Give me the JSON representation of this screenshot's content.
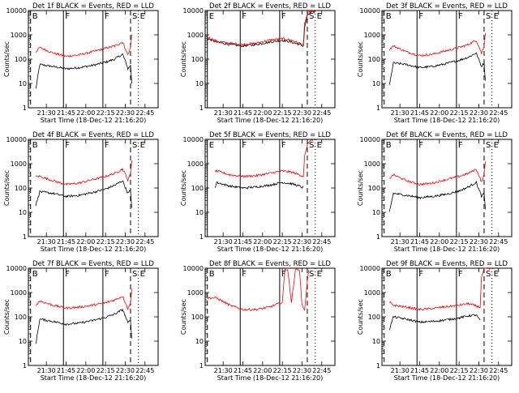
{
  "figure": {
    "xlabel": "Start Time (18-Dec-12 21:16:20)",
    "ylabel": "Counts/sec",
    "x_tick_labels": [
      "21:30",
      "21:45",
      "22:00",
      "22:15",
      "22:30",
      "22:45"
    ],
    "y_tick_labels": [
      "1",
      "10",
      "100",
      "1000",
      "10000"
    ],
    "series_colors": {
      "events": "#000000",
      "lld": "#ff0000"
    }
  },
  "chart_data": [
    {
      "type": "line",
      "title": "Det 1f BLACK = Events, RED = LLD",
      "xlabel": "Start Time (18-Dec-12 21:16:20)",
      "ylabel": "Counts/sec",
      "y_scale": "log",
      "ylim": [
        1,
        10000
      ],
      "xlim": [
        "21:16:20",
        "22:55"
      ],
      "x": [
        "21:22",
        "21:25",
        "21:35",
        "21:45",
        "21:55",
        "22:05",
        "22:15",
        "22:22",
        "22:28",
        "22:31",
        "22:32",
        "22:34",
        "22:35"
      ],
      "series": [
        {
          "name": "Events",
          "color": "#000000",
          "values": [
            6,
            60,
            50,
            40,
            45,
            55,
            75,
            100,
            160,
            60,
            40,
            55,
            10
          ]
        },
        {
          "name": "LLD",
          "color": "#ff0000",
          "values": [
            200,
            300,
            180,
            130,
            150,
            200,
            280,
            350,
            500,
            200,
            150,
            300,
            1000
          ]
        }
      ],
      "markers": [
        {
          "time": "21:18",
          "label": "B",
          "style": "dashed"
        },
        {
          "time": "21:43",
          "label": "F",
          "style": "solid"
        },
        {
          "time": "22:13",
          "label": "F",
          "style": "solid"
        },
        {
          "time": "22:34",
          "label": "S",
          "style": "dashed"
        },
        {
          "time": "22:40",
          "label": "E",
          "style": "dotted"
        }
      ]
    },
    {
      "type": "line",
      "title": "Det 2f BLACK = Events, RED = LLD",
      "xlabel": "Start Time (18-Dec-12 21:16:20)",
      "ylabel": "Counts/sec",
      "y_scale": "log",
      "ylim": [
        1,
        10000
      ],
      "xlim": [
        "21:16:20",
        "22:55"
      ],
      "x": [
        "21:18",
        "21:25",
        "21:35",
        "21:45",
        "21:55",
        "22:05",
        "22:15",
        "22:22",
        "22:28",
        "22:31",
        "22:32",
        "22:34",
        "22:36",
        "22:40"
      ],
      "series": [
        {
          "name": "Events",
          "color": "#000000",
          "values": [
            700,
            500,
            400,
            350,
            400,
            500,
            600,
            500,
            400,
            350,
            2000,
            6000,
            8000,
            9000
          ]
        },
        {
          "name": "LLD",
          "color": "#ff0000",
          "values": [
            800,
            550,
            450,
            400,
            450,
            600,
            700,
            600,
            450,
            400,
            3000,
            7000,
            9000,
            9500
          ]
        }
      ],
      "markers": [
        {
          "time": "21:18",
          "label": "E",
          "style": "solid"
        },
        {
          "time": "21:43",
          "label": "F",
          "style": "solid"
        },
        {
          "time": "22:13",
          "label": "F",
          "style": "solid"
        },
        {
          "time": "22:34",
          "label": "S",
          "style": "dashed"
        },
        {
          "time": "22:40",
          "label": "E",
          "style": "dotted"
        }
      ]
    },
    {
      "type": "line",
      "title": "Det 3f BLACK = Events, RED = LLD",
      "xlabel": "Start Time (18-Dec-12 21:16:20)",
      "ylabel": "Counts/sec",
      "y_scale": "log",
      "ylim": [
        1,
        10000
      ],
      "xlim": [
        "21:16:20",
        "22:55"
      ],
      "x": [
        "21:22",
        "21:25",
        "21:35",
        "21:45",
        "21:55",
        "22:05",
        "22:15",
        "22:22",
        "22:28",
        "22:31",
        "22:32",
        "22:34",
        "22:35"
      ],
      "series": [
        {
          "name": "Events",
          "color": "#000000",
          "values": [
            8,
            70,
            60,
            45,
            50,
            65,
            90,
            120,
            180,
            70,
            50,
            70,
            12
          ]
        },
        {
          "name": "LLD",
          "color": "#ff0000",
          "values": [
            250,
            350,
            200,
            140,
            160,
            220,
            300,
            400,
            600,
            250,
            170,
            350,
            1200
          ]
        }
      ],
      "markers": [
        {
          "time": "21:18",
          "label": "B",
          "style": "dashed"
        },
        {
          "time": "21:43",
          "label": "F",
          "style": "solid"
        },
        {
          "time": "22:13",
          "label": "F",
          "style": "solid"
        },
        {
          "time": "22:34",
          "label": "S",
          "style": "dashed"
        },
        {
          "time": "22:40",
          "label": "E",
          "style": "dotted"
        }
      ]
    },
    {
      "type": "line",
      "title": "Det 4f BLACK = Events, RED = LLD",
      "xlabel": "Start Time (18-Dec-12 21:16:20)",
      "ylabel": "Counts/sec",
      "y_scale": "log",
      "ylim": [
        1,
        10000
      ],
      "xlim": [
        "21:16:20",
        "22:55"
      ],
      "x": [
        "21:22",
        "21:25",
        "21:35",
        "21:45",
        "21:55",
        "22:05",
        "22:15",
        "22:22",
        "22:28",
        "22:31",
        "22:32",
        "22:34",
        "22:35"
      ],
      "series": [
        {
          "name": "Events",
          "color": "#000000",
          "values": [
            20,
            70,
            60,
            45,
            50,
            65,
            90,
            130,
            200,
            80,
            60,
            80,
            15
          ]
        },
        {
          "name": "LLD",
          "color": "#ff0000",
          "values": [
            300,
            300,
            200,
            140,
            160,
            220,
            300,
            400,
            600,
            300,
            200,
            400,
            1500
          ]
        }
      ],
      "markers": [
        {
          "time": "21:18",
          "label": "B",
          "style": "dashed"
        },
        {
          "time": "21:43",
          "label": "F",
          "style": "solid"
        },
        {
          "time": "22:13",
          "label": "F",
          "style": "solid"
        },
        {
          "time": "22:34",
          "label": "S",
          "style": "dashed"
        },
        {
          "time": "22:40",
          "label": "E",
          "style": "dotted"
        }
      ]
    },
    {
      "type": "line",
      "title": "Det 5f BLACK = Events, RED = LLD",
      "xlabel": "Start Time (18-Dec-12 21:16:20)",
      "ylabel": "Counts/sec",
      "y_scale": "log",
      "ylim": [
        1,
        10000
      ],
      "xlim": [
        "21:16:20",
        "22:55"
      ],
      "x": [
        "21:24",
        "21:25",
        "21:35",
        "21:45",
        "21:55",
        "22:05",
        "22:15",
        "22:22",
        "22:28",
        "22:31",
        "22:32",
        "22:34",
        "22:36",
        "22:40"
      ],
      "series": [
        {
          "name": "Events",
          "color": "#000000",
          "values": [
            100,
            170,
            120,
            100,
            110,
            130,
            170,
            150,
            120,
            100,
            null,
            null,
            null,
            null
          ]
        },
        {
          "name": "LLD",
          "color": "#ff0000",
          "values": [
            500,
            500,
            350,
            300,
            320,
            400,
            500,
            450,
            350,
            300,
            2000,
            6000,
            9000,
            9500
          ]
        }
      ],
      "markers": [
        {
          "time": "21:18",
          "label": "E",
          "style": "solid"
        },
        {
          "time": "21:43",
          "label": "F",
          "style": "solid"
        },
        {
          "time": "22:13",
          "label": "F",
          "style": "solid"
        },
        {
          "time": "22:34",
          "label": "S",
          "style": "dashed"
        },
        {
          "time": "22:40",
          "label": "E",
          "style": "dotted"
        }
      ]
    },
    {
      "type": "line",
      "title": "Det 6f BLACK = Events, RED = LLD",
      "xlabel": "Start Time (18-Dec-12 21:16:20)",
      "ylabel": "Counts/sec",
      "y_scale": "log",
      "ylim": [
        1,
        10000
      ],
      "xlim": [
        "21:16:20",
        "22:55"
      ],
      "x": [
        "21:22",
        "21:25",
        "21:35",
        "21:45",
        "21:55",
        "22:05",
        "22:15",
        "22:22",
        "22:28",
        "22:31",
        "22:32",
        "22:34",
        "22:35"
      ],
      "series": [
        {
          "name": "Events",
          "color": "#000000",
          "values": [
            10,
            60,
            50,
            40,
            45,
            55,
            75,
            110,
            170,
            65,
            45,
            60,
            12
          ]
        },
        {
          "name": "LLD",
          "color": "#ff0000",
          "values": [
            250,
            350,
            200,
            140,
            160,
            220,
            300,
            400,
            600,
            250,
            170,
            350,
            1200
          ]
        }
      ],
      "markers": [
        {
          "time": "21:18",
          "label": "B",
          "style": "dashed"
        },
        {
          "time": "21:43",
          "label": "F",
          "style": "solid"
        },
        {
          "time": "22:13",
          "label": "F",
          "style": "solid"
        },
        {
          "time": "22:34",
          "label": "S",
          "style": "dashed"
        },
        {
          "time": "22:40",
          "label": "E",
          "style": "dotted"
        }
      ]
    },
    {
      "type": "line",
      "title": "Det 7f BLACK = Events, RED = LLD",
      "xlabel": "Start Time (18-Dec-12 21:16:20)",
      "ylabel": "Counts/sec",
      "y_scale": "log",
      "ylim": [
        1,
        10000
      ],
      "xlim": [
        "21:16:20",
        "22:55"
      ],
      "x": [
        "21:22",
        "21:25",
        "21:35",
        "21:45",
        "21:55",
        "22:05",
        "22:15",
        "22:22",
        "22:28",
        "22:31",
        "22:32",
        "22:34",
        "22:35"
      ],
      "series": [
        {
          "name": "Events",
          "color": "#000000",
          "values": [
            8,
            80,
            65,
            50,
            55,
            70,
            95,
            130,
            200,
            80,
            55,
            75,
            12
          ]
        },
        {
          "name": "LLD",
          "color": "#ff0000",
          "values": [
            300,
            450,
            300,
            230,
            250,
            300,
            380,
            500,
            700,
            300,
            200,
            400,
            1500
          ]
        }
      ],
      "markers": [
        {
          "time": "21:18",
          "label": "B",
          "style": "dashed"
        },
        {
          "time": "21:43",
          "label": "F",
          "style": "solid"
        },
        {
          "time": "22:13",
          "label": "F",
          "style": "solid"
        },
        {
          "time": "22:34",
          "label": "S",
          "style": "dashed"
        },
        {
          "time": "22:40",
          "label": "E",
          "style": "dotted"
        }
      ]
    },
    {
      "type": "line",
      "title": "Det 8f BLACK = Events, RED = LLD",
      "xlabel": "Start Time (18-Dec-12 21:16:20)",
      "ylabel": "Counts/sec",
      "y_scale": "log",
      "ylim": [
        1,
        10000
      ],
      "xlim": [
        "21:16:20",
        "22:55"
      ],
      "x": [
        "21:18",
        "21:25",
        "21:35",
        "21:45",
        "21:55",
        "22:05",
        "22:15",
        "22:17",
        "22:19",
        "22:22",
        "22:25",
        "22:28",
        "22:30",
        "22:32",
        "22:35"
      ],
      "series": [
        {
          "name": "Events",
          "color": "#000000",
          "values": [
            null,
            null,
            null,
            null,
            null,
            null,
            null,
            null,
            null,
            null,
            null,
            null,
            null,
            null,
            null
          ]
        },
        {
          "name": "LLD",
          "color": "#ff0000",
          "values": [
            600,
            600,
            300,
            200,
            200,
            250,
            400,
            9000,
            9000,
            400,
            9000,
            9000,
            300,
            200,
            9000
          ]
        }
      ],
      "markers": [
        {
          "time": "21:18",
          "label": "B",
          "style": "dashed"
        },
        {
          "time": "21:43",
          "label": "F",
          "style": "solid"
        },
        {
          "time": "22:13",
          "label": "F",
          "style": "solid"
        },
        {
          "time": "22:34",
          "label": "S",
          "style": "dashed"
        },
        {
          "time": "22:40",
          "label": "E",
          "style": "dotted"
        }
      ]
    },
    {
      "type": "line",
      "title": "Det 9f BLACK = Events, RED = LLD",
      "xlabel": "Start Time (18-Dec-12 21:16:20)",
      "ylabel": "Counts/sec",
      "y_scale": "log",
      "ylim": [
        1,
        10000
      ],
      "xlim": [
        "21:16:20",
        "22:55"
      ],
      "x": [
        "21:22",
        "21:25",
        "21:35",
        "21:45",
        "21:55",
        "22:05",
        "22:15",
        "22:22",
        "22:28",
        "22:31",
        "22:32",
        "22:34",
        "22:36",
        "22:40"
      ],
      "series": [
        {
          "name": "Events",
          "color": "#000000",
          "values": [
            30,
            100,
            80,
            60,
            65,
            75,
            90,
            110,
            120,
            70,
            null,
            null,
            null,
            null
          ]
        },
        {
          "name": "LLD",
          "color": "#ff0000",
          "values": [
            400,
            300,
            250,
            200,
            220,
            260,
            300,
            350,
            280,
            250,
            4000,
            9000,
            9500,
            9500
          ]
        }
      ],
      "markers": [
        {
          "time": "21:18",
          "label": "B",
          "style": "dashed"
        },
        {
          "time": "21:43",
          "label": "F",
          "style": "solid"
        },
        {
          "time": "22:13",
          "label": "F",
          "style": "solid"
        },
        {
          "time": "22:34",
          "label": "S",
          "style": "dashed"
        },
        {
          "time": "22:40",
          "label": "E",
          "style": "dotted"
        }
      ]
    }
  ]
}
